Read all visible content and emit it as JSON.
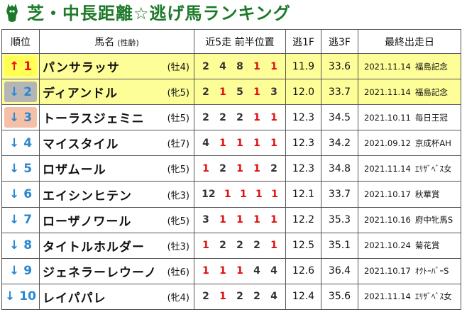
{
  "title": "芝・中長距離☆逃げ馬ランキング",
  "header": {
    "rank": "順位",
    "name": "馬名",
    "name_sub": "(性齢)",
    "positions": "近5走 前半位置",
    "f3_early": "逃1F",
    "f3_late": "逃3F",
    "last_race": "最終出走日"
  },
  "rows": [
    {
      "arrow": "↑",
      "rank": "1",
      "style": "up",
      "highlight": true,
      "name": "パンサラッサ",
      "sexage": "(牡4)",
      "pos": [
        "2",
        "4",
        "8",
        "1",
        "1"
      ],
      "f1": "11.9",
      "f3": "33.6",
      "date": "2021.11.14",
      "race": "福島記念"
    },
    {
      "arrow": "↓",
      "rank": "2",
      "style": "down-gray",
      "highlight": true,
      "name": "ディアンドル",
      "sexage": "(牝5)",
      "pos": [
        "2",
        "1",
        "5",
        "1",
        "3"
      ],
      "f1": "12.0",
      "f3": "33.7",
      "date": "2021.11.14",
      "race": "福島記念"
    },
    {
      "arrow": "↓",
      "rank": "3",
      "style": "down-peach",
      "highlight": false,
      "name": "トーラスジェミニ",
      "sexage": "(牡5)",
      "pos": [
        "2",
        "2",
        "2",
        "1",
        "1"
      ],
      "f1": "12.3",
      "f3": "34.5",
      "date": "2021.10.11",
      "race": "毎日王冠"
    },
    {
      "arrow": "↓",
      "rank": "4",
      "style": "down",
      "highlight": false,
      "name": "マイスタイル",
      "sexage": "(牡7)",
      "pos": [
        "4",
        "1",
        "1",
        "1",
        "1"
      ],
      "f1": "12.3",
      "f3": "34.2",
      "date": "2021.09.12",
      "race": "京成杯AH"
    },
    {
      "arrow": "↓",
      "rank": "5",
      "style": "down",
      "highlight": false,
      "name": "ロザムール",
      "sexage": "(牝5)",
      "pos": [
        "1",
        "2",
        "1",
        "1",
        "2"
      ],
      "f1": "12.3",
      "f3": "34.8",
      "date": "2021.11.14",
      "race": "ｴﾘｻﾞﾍﾞｽ女"
    },
    {
      "arrow": "↓",
      "rank": "6",
      "style": "down",
      "highlight": false,
      "name": "エイシンヒテン",
      "sexage": "(牝3)",
      "pos": [
        "12",
        "1",
        "1",
        "1",
        "1"
      ],
      "f1": "12.1",
      "f3": "33.7",
      "date": "2021.10.17",
      "race": "秋華賞"
    },
    {
      "arrow": "↓",
      "rank": "7",
      "style": "down",
      "highlight": false,
      "name": "ローザノワール",
      "sexage": "(牝5)",
      "pos": [
        "3",
        "1",
        "1",
        "1",
        "1"
      ],
      "f1": "12.2",
      "f3": "35.3",
      "date": "2021.10.16",
      "race": "府中牝馬S"
    },
    {
      "arrow": "↓",
      "rank": "8",
      "style": "down",
      "highlight": false,
      "name": "タイトルホルダー",
      "sexage": "(牡3)",
      "pos": [
        "1",
        "2",
        "2",
        "2",
        "1"
      ],
      "f1": "12.5",
      "f3": "35.1",
      "date": "2021.10.24",
      "race": "菊花賞"
    },
    {
      "arrow": "↓",
      "rank": "9",
      "style": "down",
      "highlight": false,
      "name": "ジェネラーレウーノ",
      "sexage": "(牡6)",
      "pos": [
        "1",
        "1",
        "1",
        "4",
        "4"
      ],
      "f1": "12.6",
      "f3": "36.4",
      "date": "2021.10.17",
      "race": "ｵｸﾄｰﾊﾞｰS"
    },
    {
      "arrow": "↓",
      "rank": "10",
      "style": "down",
      "highlight": false,
      "name": "レイパパレ",
      "sexage": "(牝4)",
      "pos": [
        "2",
        "1",
        "2",
        "2",
        "4"
      ],
      "f1": "12.4",
      "f3": "35.6",
      "date": "2021.11.14",
      "race": "ｴﾘｻﾞﾍﾞｽ女"
    }
  ],
  "colors": {
    "title": "#1e7a2a",
    "highlight_row": "#fefe99",
    "up_box": "#ffff55",
    "up_text": "#ee1111",
    "down_text": "#2a87cf",
    "first_position": "#e01010"
  },
  "icons": {
    "logo": "green-horse-head-logo-icon"
  }
}
